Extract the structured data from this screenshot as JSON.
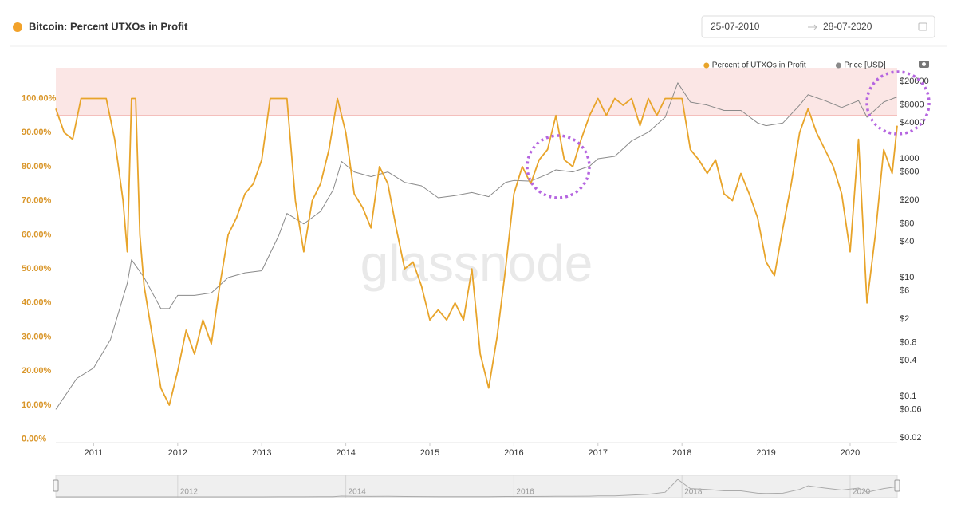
{
  "chart_data": {
    "type": "line",
    "title": "Bitcoin: Percent UTXOs in Profit",
    "date_range": {
      "from": "25-07-2010",
      "to": "28-07-2020"
    },
    "watermark": "glassnode",
    "xlim": [
      2010.55,
      2020.56
    ],
    "xticks": [
      2011,
      2012,
      2013,
      2014,
      2015,
      2016,
      2017,
      2018,
      2019,
      2020
    ],
    "ylim": [
      -1,
      109
    ],
    "yticks": [
      {
        "value": 0,
        "label": "0.00%"
      },
      {
        "value": 10,
        "label": "10.00%"
      },
      {
        "value": 20,
        "label": "20.00%"
      },
      {
        "value": 30,
        "label": "30.00%"
      },
      {
        "value": 40,
        "label": "40.00%"
      },
      {
        "value": 50,
        "label": "50.00%"
      },
      {
        "value": 60,
        "label": "60.00%"
      },
      {
        "value": 70,
        "label": "70.00%"
      },
      {
        "value": 80,
        "label": "80.00%"
      },
      {
        "value": 90,
        "label": "90.00%"
      },
      {
        "value": 100,
        "label": "100.00%"
      }
    ],
    "y2lim": [
      0.0166,
      34000
    ],
    "y2log": true,
    "y2ticks": [
      {
        "value": 20000,
        "label": "$20000"
      },
      {
        "value": 8000,
        "label": "$8000"
      },
      {
        "value": 4000,
        "label": "$4000"
      },
      1000,
      {
        "value": 600,
        "label": "$600"
      },
      {
        "value": 200,
        "label": "$200"
      },
      {
        "value": 80,
        "label": "$80"
      },
      {
        "value": 40,
        "label": "$40"
      },
      {
        "value": 10,
        "label": "$10"
      },
      {
        "value": 6,
        "label": "$6"
      },
      {
        "value": 2,
        "label": "$2"
      },
      {
        "value": 0.8,
        "label": "$0.8"
      },
      {
        "value": 0.4,
        "label": "$0.4"
      },
      {
        "value": 0.1,
        "label": "$0.1"
      },
      {
        "value": 0.06,
        "label": "$0.06"
      },
      {
        "value": 0.02,
        "label": "$0.02"
      }
    ],
    "threshold_band": {
      "from": 95,
      "color": "#fbe6e5",
      "line_color": "#f0a8a4"
    },
    "grid": false,
    "legend": "top-right",
    "navigator_ticks": [
      2012,
      2014,
      2016,
      2018,
      2020
    ],
    "series": [
      {
        "name": "Percent of UTXOs in Profit",
        "color": "#e8a42a",
        "x": [
          2010.55,
          2010.65,
          2010.75,
          2010.85,
          2010.95,
          2011.05,
          2011.15,
          2011.25,
          2011.35,
          2011.4,
          2011.45,
          2011.5,
          2011.55,
          2011.6,
          2011.7,
          2011.8,
          2011.9,
          2012.0,
          2012.1,
          2012.2,
          2012.3,
          2012.4,
          2012.5,
          2012.6,
          2012.7,
          2012.8,
          2012.9,
          2013.0,
          2013.1,
          2013.2,
          2013.3,
          2013.4,
          2013.5,
          2013.6,
          2013.7,
          2013.8,
          2013.9,
          2014.0,
          2014.1,
          2014.2,
          2014.3,
          2014.4,
          2014.5,
          2014.6,
          2014.7,
          2014.8,
          2014.9,
          2015.0,
          2015.1,
          2015.2,
          2015.3,
          2015.4,
          2015.5,
          2015.6,
          2015.7,
          2015.8,
          2015.9,
          2016.0,
          2016.1,
          2016.2,
          2016.3,
          2016.4,
          2016.5,
          2016.6,
          2016.7,
          2016.8,
          2016.9,
          2017.0,
          2017.1,
          2017.2,
          2017.3,
          2017.4,
          2017.5,
          2017.6,
          2017.7,
          2017.8,
          2017.9,
          2018.0,
          2018.1,
          2018.2,
          2018.3,
          2018.4,
          2018.5,
          2018.6,
          2018.7,
          2018.8,
          2018.9,
          2019.0,
          2019.1,
          2019.2,
          2019.3,
          2019.4,
          2019.5,
          2019.6,
          2019.7,
          2019.8,
          2019.9,
          2020.0,
          2020.1,
          2020.2,
          2020.3,
          2020.4,
          2020.5,
          2020.56
        ],
        "values": [
          97,
          90,
          88,
          100,
          100,
          100,
          100,
          88,
          70,
          55,
          100,
          100,
          60,
          45,
          30,
          15,
          10,
          20,
          32,
          25,
          35,
          28,
          45,
          60,
          65,
          72,
          75,
          82,
          100,
          100,
          100,
          70,
          55,
          70,
          75,
          85,
          100,
          90,
          72,
          68,
          62,
          80,
          75,
          62,
          50,
          52,
          45,
          35,
          38,
          35,
          40,
          35,
          50,
          25,
          15,
          30,
          50,
          72,
          80,
          75,
          82,
          85,
          95,
          82,
          80,
          88,
          95,
          100,
          95,
          100,
          98,
          100,
          92,
          100,
          95,
          100,
          100,
          100,
          85,
          82,
          78,
          82,
          72,
          70,
          78,
          72,
          65,
          52,
          48,
          62,
          75,
          90,
          97,
          90,
          85,
          80,
          72,
          55,
          88,
          40,
          60,
          85,
          78,
          92
        ]
      },
      {
        "name": "Price [USD]",
        "color": "#8a8a8a",
        "axis": "y2",
        "x": [
          2010.55,
          2010.8,
          2011.0,
          2011.2,
          2011.4,
          2011.45,
          2011.6,
          2011.8,
          2011.9,
          2012.0,
          2012.2,
          2012.4,
          2012.6,
          2012.8,
          2013.0,
          2013.2,
          2013.3,
          2013.5,
          2013.7,
          2013.85,
          2013.95,
          2014.1,
          2014.3,
          2014.5,
          2014.7,
          2014.9,
          2015.1,
          2015.3,
          2015.5,
          2015.7,
          2015.9,
          2016.0,
          2016.2,
          2016.4,
          2016.5,
          2016.7,
          2016.9,
          2017.0,
          2017.2,
          2017.4,
          2017.6,
          2017.8,
          2017.95,
          2018.1,
          2018.3,
          2018.5,
          2018.7,
          2018.9,
          2019.0,
          2019.2,
          2019.4,
          2019.5,
          2019.7,
          2019.9,
          2020.1,
          2020.2,
          2020.4,
          2020.56
        ],
        "values": [
          0.06,
          0.2,
          0.3,
          0.9,
          8,
          20,
          10,
          3,
          3,
          5,
          5,
          5.5,
          10,
          12,
          13,
          50,
          120,
          80,
          130,
          300,
          900,
          600,
          500,
          600,
          400,
          350,
          220,
          240,
          270,
          230,
          400,
          430,
          420,
          550,
          650,
          600,
          750,
          1000,
          1100,
          2000,
          2800,
          5000,
          19000,
          9000,
          8000,
          6500,
          6500,
          4000,
          3600,
          4000,
          8000,
          12000,
          9500,
          7300,
          9500,
          5000,
          9000,
          11000
        ]
      }
    ]
  }
}
